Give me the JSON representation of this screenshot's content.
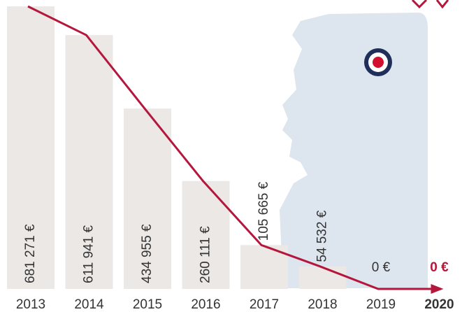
{
  "chart_data": {
    "type": "bar",
    "categories": [
      "2013",
      "2014",
      "2015",
      "2016",
      "2017",
      "2018",
      "2019",
      "2020"
    ],
    "values": [
      681271,
      611941,
      434955,
      260111,
      105665,
      54532,
      0,
      0
    ],
    "value_labels": [
      "681 271 €",
      "611 941 €",
      "434 955 €",
      "260 111 €",
      "105 665 €",
      "54 532 €",
      "0 €",
      "0 €"
    ],
    "color": "#ebe8e6",
    "line_color": "#b5173c",
    "ylim": [
      0,
      700000
    ]
  }
}
